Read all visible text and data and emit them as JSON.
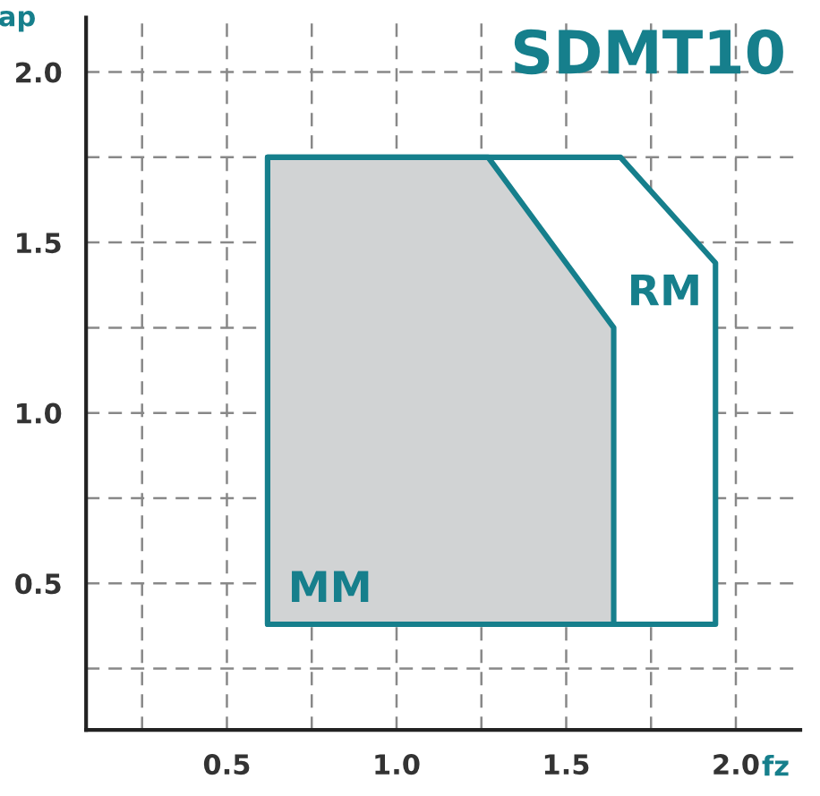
{
  "chart_data": {
    "type": "area",
    "title": "SDMT10",
    "xlabel": "fz",
    "ylabel": "ap",
    "series": [
      {
        "name": "RM",
        "color": "#ffffff",
        "x": [
          0.62,
          0.62,
          1.66,
          1.94,
          1.94,
          0.62
        ],
        "values": [
          0.38,
          1.75,
          1.75,
          1.44,
          0.38,
          0.38
        ]
      },
      {
        "name": "MM",
        "color": "#d1d3d4",
        "x": [
          0.62,
          0.62,
          1.27,
          1.64,
          1.64,
          0.62
        ],
        "values": [
          0.38,
          1.75,
          1.75,
          1.25,
          0.38,
          0.38
        ]
      }
    ],
    "xlim": [
      0.085,
      2.19
    ],
    "ylim": [
      0.07,
      2.16
    ],
    "xticks": [
      {
        "value": 0.25,
        "label": null
      },
      0.5,
      {
        "value": 0.75,
        "label": null
      },
      {
        "value": 1,
        "label": "1.0"
      },
      {
        "value": 1.25,
        "label": null
      },
      1.5,
      {
        "value": 1.75,
        "label": null
      },
      {
        "value": 2,
        "label": "2.0"
      }
    ],
    "yticks": [
      {
        "value": 0.25,
        "label": null
      },
      0.5,
      {
        "value": 0.75,
        "label": null
      },
      {
        "value": 1,
        "label": "1.0"
      },
      {
        "value": 1.25,
        "label": null
      },
      1.5,
      {
        "value": 1.75,
        "label": null
      },
      {
        "value": 2,
        "label": "2.0"
      }
    ],
    "grid": true,
    "legend": false,
    "line_style": "solid"
  }
}
